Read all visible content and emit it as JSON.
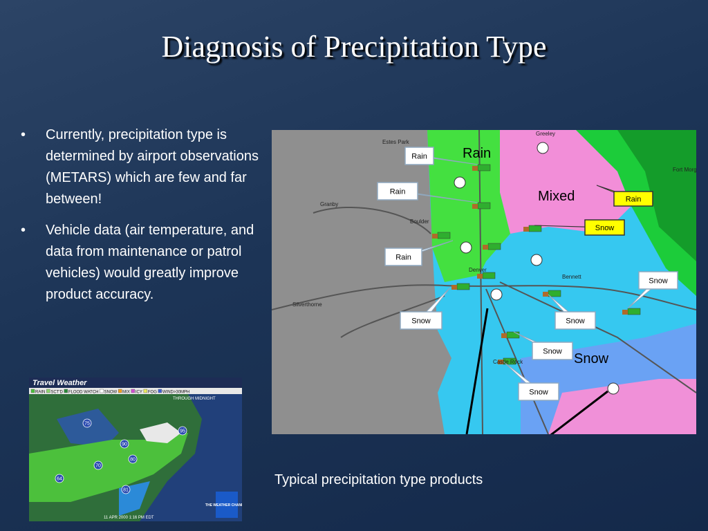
{
  "title": "Diagnosis of Precipitation Type",
  "bullets": [
    "Currently, precipitation type is determined by airport observations (METARS) which are few and far between!",
    "Vehicle data (air temperature, and data from maintenance or patrol vehicles) would greatly improve product accuracy."
  ],
  "caption": "Typical precipitation type products",
  "map": {
    "region_labels": [
      "Rain",
      "Mixed",
      "Snow"
    ],
    "callouts": [
      "Rain",
      "Rain",
      "Rain",
      "Snow",
      "Snow",
      "Snow",
      "Snow",
      "Snow",
      "Rain",
      "Snow"
    ],
    "places": [
      "Estes Park",
      "Greeley",
      "Granby",
      "Boulder",
      "Denver",
      "Bennett",
      "Silverthorne",
      "Castle Rock",
      "Fort Morgan"
    ]
  },
  "inset": {
    "title": "Travel Weather",
    "legend": [
      "RAIN",
      "SCT'D",
      "FLOOD WATCH",
      "SNOW",
      "MIX",
      "ICY",
      "FOG",
      "WIND>30MPH"
    ],
    "subtitle": "THROUGH MIDNIGHT",
    "highways": [
      "75",
      "90",
      "95",
      "80",
      "70",
      "81",
      "64"
    ],
    "timestamp": "11 APR 2000 1:16 PM EDT",
    "logo": "THE WEATHER CHANNEL"
  }
}
